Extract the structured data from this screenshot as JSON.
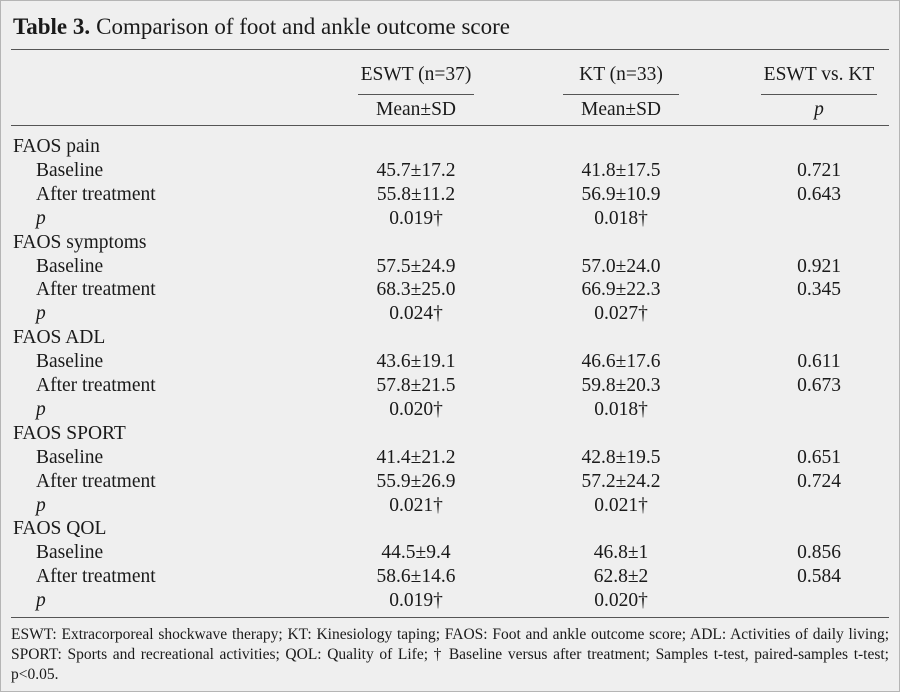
{
  "title": {
    "label": "Table 3.",
    "text": "Comparison of foot and ankle outcome score"
  },
  "columns": [
    {
      "group": "ESWT (n=37)",
      "sub": "Mean±SD"
    },
    {
      "group": "KT (n=33)",
      "sub": "Mean±SD"
    },
    {
      "group": "ESWT vs. KT",
      "sub": "p"
    }
  ],
  "sections": [
    {
      "name": "FAOS pain",
      "rows": [
        [
          "Baseline",
          "45.7±17.2",
          "41.8±17.5",
          "0.721"
        ],
        [
          "After treatment",
          "55.8±11.2",
          "56.9±10.9",
          "0.643"
        ],
        [
          "p",
          "0.019†",
          "0.018†"
        ]
      ]
    },
    {
      "name": "FAOS symptoms",
      "rows": [
        [
          "Baseline",
          "57.5±24.9",
          "57.0±24.0",
          "0.921"
        ],
        [
          "After treatment",
          "68.3±25.0",
          "66.9±22.3",
          "0.345"
        ],
        [
          "p",
          "0.024†",
          "0.027†"
        ]
      ]
    },
    {
      "name": "FAOS ADL",
      "rows": [
        [
          "Baseline",
          "43.6±19.1",
          "46.6±17.6",
          "0.611"
        ],
        [
          "After treatment",
          "57.8±21.5",
          "59.8±20.3",
          "0.673"
        ],
        [
          "p",
          "0.020†",
          "0.018†"
        ]
      ]
    },
    {
      "name": "FAOS SPORT",
      "rows": [
        [
          "Baseline",
          "41.4±21.2",
          "42.8±19.5",
          "0.651"
        ],
        [
          "After treatment",
          "55.9±26.9",
          "57.2±24.2",
          "0.724"
        ],
        [
          "p",
          "0.021†",
          "0.021†"
        ]
      ]
    },
    {
      "name": "FAOS QOL",
      "rows": [
        [
          "Baseline",
          "44.5±9.4",
          "46.8±1",
          "0.856"
        ],
        [
          "After treatment",
          "58.6±14.6",
          "62.8±2",
          "0.584"
        ],
        [
          "p",
          "0.019†",
          "0.020†"
        ]
      ]
    }
  ],
  "footnote": "ESWT: Extracorporeal shockwave therapy; KT: Kinesiology taping; FAOS: Foot and ankle outcome score; ADL: Activities of daily living; SPORT: Sports and recreational activities; QOL: Quality of Life; † Baseline versus after treatment; Samples t-test, paired-samples t-test; p<0.05."
}
